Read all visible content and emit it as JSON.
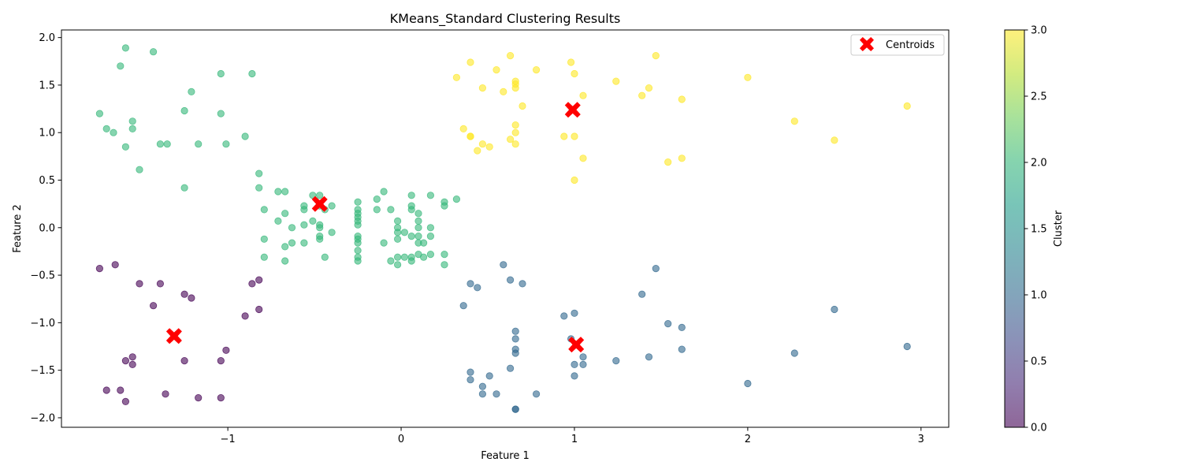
{
  "chart_data": {
    "type": "scatter",
    "title": "KMeans_Standard Clustering Results",
    "xlabel": "Feature 1",
    "ylabel": "Feature 2",
    "xlim": [
      -1.96,
      3.16
    ],
    "ylim": [
      -2.1,
      2.08
    ],
    "xticks": [
      -1,
      0,
      1,
      2,
      3
    ],
    "yticks": [
      -2.0,
      -1.5,
      -1.0,
      -0.5,
      0.0,
      0.5,
      1.0,
      1.5,
      2.0
    ],
    "grid": false,
    "legend": {
      "placement": "top-right",
      "entries": [
        "Centroids"
      ]
    },
    "colorbar": {
      "label": "Cluster",
      "range": [
        0.0,
        3.0
      ],
      "ticks": [
        0.0,
        0.5,
        1.0,
        1.5,
        2.0,
        2.5,
        3.0
      ],
      "colormap": "viridis"
    },
    "point_alpha": 0.6,
    "series": [
      {
        "cluster": 0,
        "color": "#440154",
        "points": [
          [
            -1.74,
            -0.43
          ],
          [
            -1.65,
            -0.39
          ],
          [
            -1.51,
            -0.59
          ],
          [
            -1.39,
            -0.59
          ],
          [
            -1.43,
            -0.82
          ],
          [
            -1.25,
            -0.7
          ],
          [
            -1.21,
            -0.74
          ],
          [
            -0.86,
            -0.59
          ],
          [
            -0.82,
            -0.55
          ],
          [
            -0.82,
            -0.86
          ],
          [
            -0.9,
            -0.93
          ],
          [
            -1.01,
            -1.29
          ],
          [
            -1.04,
            -1.4
          ],
          [
            -1.25,
            -1.4
          ],
          [
            -1.59,
            -1.4
          ],
          [
            -1.55,
            -1.36
          ],
          [
            -1.55,
            -1.44
          ],
          [
            -1.7,
            -1.71
          ],
          [
            -1.62,
            -1.71
          ],
          [
            -1.59,
            -1.83
          ],
          [
            -1.36,
            -1.75
          ],
          [
            -1.17,
            -1.79
          ],
          [
            -1.04,
            -1.79
          ]
        ]
      },
      {
        "cluster": 1,
        "color": "#31688e",
        "points": [
          [
            0.59,
            -0.39
          ],
          [
            0.63,
            -0.55
          ],
          [
            0.7,
            -0.59
          ],
          [
            0.4,
            -0.59
          ],
          [
            0.44,
            -0.63
          ],
          [
            0.36,
            -0.82
          ],
          [
            1.47,
            -0.43
          ],
          [
            1.39,
            -0.7
          ],
          [
            1.0,
            -0.9
          ],
          [
            0.94,
            -0.93
          ],
          [
            1.54,
            -1.01
          ],
          [
            1.62,
            -1.05
          ],
          [
            0.66,
            -1.09
          ],
          [
            0.66,
            -1.17
          ],
          [
            0.98,
            -1.17
          ],
          [
            0.66,
            -1.28
          ],
          [
            0.66,
            -1.32
          ],
          [
            1.62,
            -1.28
          ],
          [
            1.43,
            -1.36
          ],
          [
            1.05,
            -1.36
          ],
          [
            1.24,
            -1.4
          ],
          [
            1.0,
            -1.44
          ],
          [
            1.05,
            -1.44
          ],
          [
            0.63,
            -1.48
          ],
          [
            0.4,
            -1.52
          ],
          [
            0.51,
            -1.56
          ],
          [
            1.0,
            -1.56
          ],
          [
            0.4,
            -1.6
          ],
          [
            0.47,
            -1.67
          ],
          [
            0.47,
            -1.75
          ],
          [
            0.55,
            -1.75
          ],
          [
            0.78,
            -1.75
          ],
          [
            0.66,
            -1.91
          ],
          [
            0.66,
            -1.91
          ],
          [
            2.0,
            -1.64
          ],
          [
            2.27,
            -1.32
          ],
          [
            2.5,
            -0.86
          ],
          [
            2.92,
            -1.25
          ]
        ]
      },
      {
        "cluster": 2,
        "color": "#35b779",
        "points": [
          [
            -1.59,
            1.89
          ],
          [
            -1.43,
            1.85
          ],
          [
            -1.62,
            1.7
          ],
          [
            -1.04,
            1.62
          ],
          [
            -0.86,
            1.62
          ],
          [
            -1.21,
            1.43
          ],
          [
            -1.25,
            1.23
          ],
          [
            -1.04,
            1.2
          ],
          [
            -1.74,
            1.2
          ],
          [
            -1.55,
            1.12
          ],
          [
            -1.7,
            1.04
          ],
          [
            -1.66,
            1.0
          ],
          [
            -1.55,
            1.04
          ],
          [
            -0.9,
            0.96
          ],
          [
            -1.59,
            0.85
          ],
          [
            -1.39,
            0.88
          ],
          [
            -1.35,
            0.88
          ],
          [
            -1.17,
            0.88
          ],
          [
            -1.01,
            0.88
          ],
          [
            -1.51,
            0.61
          ],
          [
            -1.25,
            0.42
          ],
          [
            -0.82,
            0.57
          ],
          [
            -0.82,
            0.42
          ],
          [
            -0.71,
            0.38
          ],
          [
            -0.67,
            0.38
          ],
          [
            -0.51,
            0.34
          ],
          [
            -0.47,
            0.34
          ],
          [
            -0.79,
            0.19
          ],
          [
            -0.67,
            0.15
          ],
          [
            -0.56,
            0.19
          ],
          [
            -0.56,
            0.23
          ],
          [
            -0.47,
            0.23
          ],
          [
            -0.44,
            0.19
          ],
          [
            -0.4,
            0.23
          ],
          [
            -0.71,
            0.07
          ],
          [
            -0.63,
            0.0
          ],
          [
            -0.56,
            0.03
          ],
          [
            -0.51,
            0.07
          ],
          [
            -0.47,
            0.03
          ],
          [
            -0.47,
            0.0
          ],
          [
            -0.47,
            -0.09
          ],
          [
            -0.47,
            -0.12
          ],
          [
            -0.4,
            -0.05
          ],
          [
            -0.79,
            -0.12
          ],
          [
            -0.79,
            -0.31
          ],
          [
            -0.63,
            -0.16
          ],
          [
            -0.67,
            -0.2
          ],
          [
            -0.56,
            -0.16
          ],
          [
            -0.67,
            -0.35
          ],
          [
            -0.44,
            -0.31
          ],
          [
            -0.25,
            0.27
          ],
          [
            -0.25,
            0.19
          ],
          [
            -0.25,
            0.15
          ],
          [
            -0.25,
            0.11
          ],
          [
            -0.25,
            0.07
          ],
          [
            -0.25,
            0.03
          ],
          [
            -0.25,
            -0.09
          ],
          [
            -0.25,
            -0.12
          ],
          [
            -0.25,
            -0.16
          ],
          [
            -0.25,
            -0.24
          ],
          [
            -0.25,
            -0.31
          ],
          [
            -0.25,
            -0.35
          ],
          [
            -0.14,
            0.3
          ],
          [
            -0.1,
            0.38
          ],
          [
            -0.14,
            0.19
          ],
          [
            -0.06,
            0.19
          ],
          [
            -0.02,
            0.07
          ],
          [
            -0.02,
            0.0
          ],
          [
            -0.02,
            -0.05
          ],
          [
            0.02,
            -0.05
          ],
          [
            -0.02,
            -0.12
          ],
          [
            -0.1,
            -0.16
          ],
          [
            -0.06,
            -0.35
          ],
          [
            -0.02,
            -0.31
          ],
          [
            -0.02,
            -0.39
          ],
          [
            0.02,
            -0.31
          ],
          [
            0.06,
            -0.31
          ],
          [
            0.06,
            -0.35
          ],
          [
            0.06,
            0.34
          ],
          [
            0.06,
            0.23
          ],
          [
            0.06,
            0.19
          ],
          [
            0.1,
            0.15
          ],
          [
            0.1,
            0.07
          ],
          [
            0.1,
            0.0
          ],
          [
            0.06,
            -0.09
          ],
          [
            0.1,
            -0.09
          ],
          [
            0.1,
            -0.16
          ],
          [
            0.13,
            -0.16
          ],
          [
            0.17,
            -0.09
          ],
          [
            0.17,
            0.0
          ],
          [
            0.1,
            -0.28
          ],
          [
            0.13,
            -0.31
          ],
          [
            0.17,
            -0.28
          ],
          [
            0.17,
            0.34
          ],
          [
            0.25,
            0.27
          ],
          [
            0.25,
            0.23
          ],
          [
            0.32,
            0.3
          ],
          [
            0.25,
            -0.28
          ],
          [
            0.25,
            -0.39
          ]
        ]
      },
      {
        "cluster": 3,
        "color": "#fde725",
        "points": [
          [
            0.4,
            1.74
          ],
          [
            0.63,
            1.81
          ],
          [
            0.98,
            1.74
          ],
          [
            1.47,
            1.81
          ],
          [
            0.32,
            1.58
          ],
          [
            0.55,
            1.66
          ],
          [
            0.78,
            1.66
          ],
          [
            1.0,
            1.62
          ],
          [
            0.66,
            1.54
          ],
          [
            0.66,
            1.51
          ],
          [
            0.66,
            1.47
          ],
          [
            0.47,
            1.47
          ],
          [
            0.59,
            1.43
          ],
          [
            1.24,
            1.54
          ],
          [
            1.43,
            1.47
          ],
          [
            1.39,
            1.39
          ],
          [
            1.05,
            1.39
          ],
          [
            1.62,
            1.35
          ],
          [
            0.7,
            1.28
          ],
          [
            2.0,
            1.58
          ],
          [
            2.27,
            1.12
          ],
          [
            2.92,
            1.28
          ],
          [
            0.36,
            1.04
          ],
          [
            0.4,
            0.96
          ],
          [
            0.4,
            0.96
          ],
          [
            0.66,
            1.08
          ],
          [
            0.66,
            1.0
          ],
          [
            0.63,
            0.93
          ],
          [
            0.66,
            0.88
          ],
          [
            0.47,
            0.88
          ],
          [
            0.51,
            0.85
          ],
          [
            0.44,
            0.81
          ],
          [
            0.94,
            0.96
          ],
          [
            1.0,
            0.96
          ],
          [
            1.05,
            0.73
          ],
          [
            1.54,
            0.69
          ],
          [
            1.62,
            0.73
          ],
          [
            1.0,
            0.5
          ],
          [
            2.5,
            0.92
          ]
        ]
      }
    ],
    "centroids": {
      "name": "Centroids",
      "color": "#ff0000",
      "marker": "X",
      "points": [
        [
          -1.31,
          -1.14
        ],
        [
          1.01,
          -1.23
        ],
        [
          -0.47,
          0.25
        ],
        [
          0.99,
          1.24
        ]
      ]
    }
  }
}
